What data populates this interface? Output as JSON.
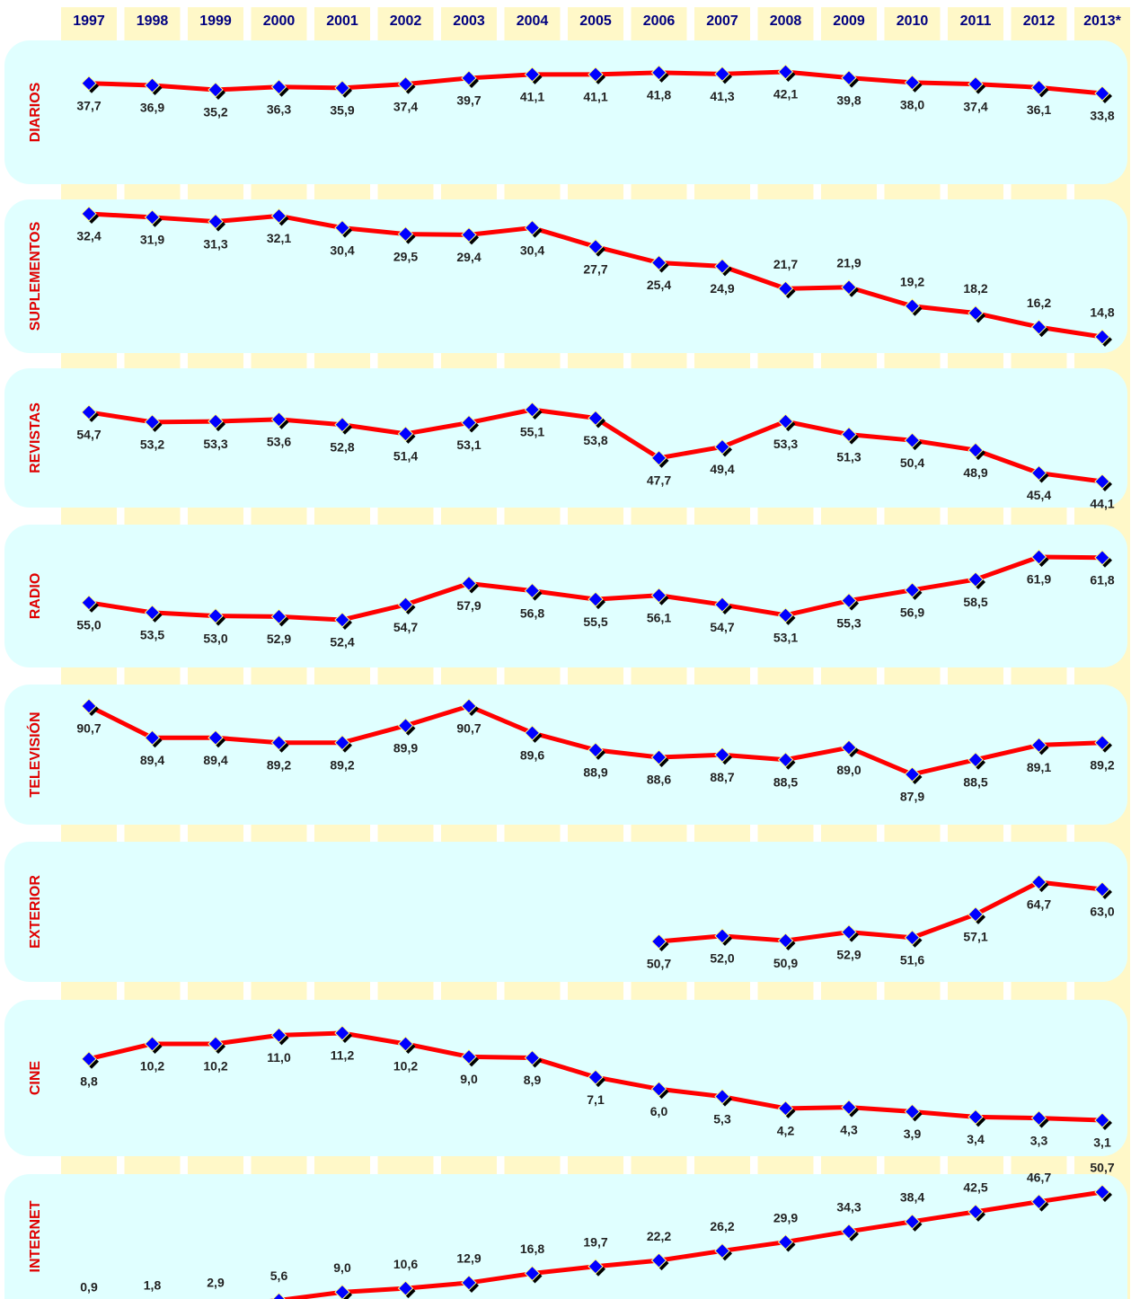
{
  "chart_data": {
    "type": "line",
    "categories": [
      "1997",
      "1998",
      "1999",
      "2000",
      "2001",
      "2002",
      "2003",
      "2004",
      "2005",
      "2006",
      "2007",
      "2008",
      "2009",
      "2010",
      "2011",
      "2012",
      "2013*"
    ],
    "line_color": "#ff0000",
    "marker_color": "#0000ff",
    "series": [
      {
        "name": "DIARIOS",
        "values": [
          37.7,
          36.9,
          35.2,
          36.3,
          35.9,
          37.4,
          39.7,
          41.1,
          41.1,
          41.8,
          41.3,
          42.1,
          39.8,
          38.0,
          37.4,
          36.1,
          33.8
        ],
        "value_labels": [
          "37,7",
          "36,9",
          "35,2",
          "36,3",
          "35,9",
          "37,4",
          "39,7",
          "41,1",
          "41,1",
          "41,8",
          "41,3",
          "42,1",
          "39,8",
          "38,0",
          "37,4",
          "36,1",
          "33,8"
        ]
      },
      {
        "name": "SUPLEMENTOS",
        "values": [
          32.4,
          31.9,
          31.3,
          32.1,
          30.4,
          29.5,
          29.4,
          30.4,
          27.7,
          25.4,
          24.9,
          21.7,
          21.9,
          19.2,
          18.2,
          16.2,
          14.8
        ],
        "value_labels": [
          "32,4",
          "31,9",
          "31,3",
          "32,1",
          "30,4",
          "29,5",
          "29,4",
          "30,4",
          "27,7",
          "25,4",
          "24,9",
          "21,7",
          "21,9",
          "19,2",
          "18,2",
          "16,2",
          "14,8"
        ]
      },
      {
        "name": "REVISTAS",
        "values": [
          54.7,
          53.2,
          53.3,
          53.6,
          52.8,
          51.4,
          53.1,
          55.1,
          53.8,
          47.7,
          49.4,
          53.3,
          51.3,
          50.4,
          48.9,
          45.4,
          44.1
        ],
        "value_labels": [
          "54,7",
          "53,2",
          "53,3",
          "53,6",
          "52,8",
          "51,4",
          "53,1",
          "55,1",
          "53,8",
          "47,7",
          "49,4",
          "53,3",
          "51,3",
          "50,4",
          "48,9",
          "45,4",
          "44,1"
        ]
      },
      {
        "name": "RADIO",
        "values": [
          55.0,
          53.5,
          53.0,
          52.9,
          52.4,
          54.7,
          57.9,
          56.8,
          55.5,
          56.1,
          54.7,
          53.1,
          55.3,
          56.9,
          58.5,
          61.9,
          61.8
        ],
        "value_labels": [
          "55,0",
          "53,5",
          "53,0",
          "52,9",
          "52,4",
          "54,7",
          "57,9",
          "56,8",
          "55,5",
          "56,1",
          "54,7",
          "53,1",
          "55,3",
          "56,9",
          "58,5",
          "61,9",
          "61,8"
        ]
      },
      {
        "name": "TELEVISIÓN",
        "values": [
          90.7,
          89.4,
          89.4,
          89.2,
          89.2,
          89.9,
          90.7,
          89.6,
          88.9,
          88.6,
          88.7,
          88.5,
          89.0,
          87.9,
          88.5,
          89.1,
          89.2
        ],
        "value_labels": [
          "90,7",
          "89,4",
          "89,4",
          "89,2",
          "89,2",
          "89,9",
          "90,7",
          "89,6",
          "88,9",
          "88,6",
          "88,7",
          "88,5",
          "89,0",
          "87,9",
          "88,5",
          "89,1",
          "89,2"
        ]
      },
      {
        "name": "EXTERIOR",
        "values": [
          null,
          null,
          null,
          null,
          null,
          null,
          null,
          null,
          null,
          50.7,
          52.0,
          50.9,
          52.9,
          51.6,
          57.1,
          64.7,
          63.0
        ],
        "value_labels": [
          null,
          null,
          null,
          null,
          null,
          null,
          null,
          null,
          null,
          "50,7",
          "52,0",
          "50,9",
          "52,9",
          "51,6",
          "57,1",
          "64,7",
          "63,0"
        ]
      },
      {
        "name": "CINE",
        "values": [
          8.8,
          10.2,
          10.2,
          11.0,
          11.2,
          10.2,
          9.0,
          8.9,
          7.1,
          6.0,
          5.3,
          4.2,
          4.3,
          3.9,
          3.4,
          3.3,
          3.1
        ],
        "value_labels": [
          "8,8",
          "10,2",
          "10,2",
          "11,0",
          "11,2",
          "10,2",
          "9,0",
          "8,9",
          "7,1",
          "6,0",
          "5,3",
          "4,2",
          "4,3",
          "3,9",
          "3,4",
          "3,3",
          "3,1"
        ]
      },
      {
        "name": "INTERNET",
        "values": [
          0.9,
          1.8,
          2.9,
          5.6,
          9.0,
          10.6,
          12.9,
          16.8,
          19.7,
          22.2,
          26.2,
          29.9,
          34.3,
          38.4,
          42.5,
          46.7,
          50.7
        ],
        "value_labels": [
          "0,9",
          "1,8",
          "2,9",
          "5,6",
          "9,0",
          "10,6",
          "12,9",
          "16,8",
          "19,7",
          "22,2",
          "26,2",
          "29,9",
          "34,3",
          "38,4",
          "42,5",
          "46,7",
          "50,7"
        ]
      }
    ]
  }
}
